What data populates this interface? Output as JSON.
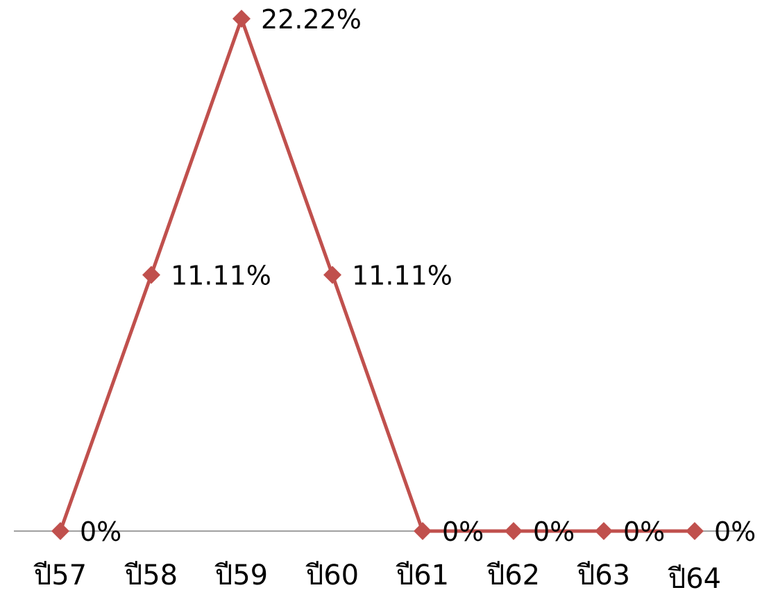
{
  "chart_data": {
    "type": "line",
    "categories": [
      "ปี57",
      "ปี58",
      "ปี59",
      "ปี60",
      "ปี61",
      "ปี62",
      "ปี63",
      "ปี64"
    ],
    "series": [
      {
        "values": [
          0,
          11.11,
          22.22,
          11.11,
          0,
          0,
          0,
          0
        ],
        "labels": [
          "0%",
          "11.11%",
          "22.22%",
          "11.11%",
          "0%",
          "0%",
          "0%",
          "0%"
        ],
        "color": "#c0504d",
        "marker": "diamond"
      }
    ],
    "ylim": [
      0,
      22.22
    ],
    "axis_color": "#808080",
    "grid": false,
    "legend": "none",
    "y_axis_visible": false
  }
}
